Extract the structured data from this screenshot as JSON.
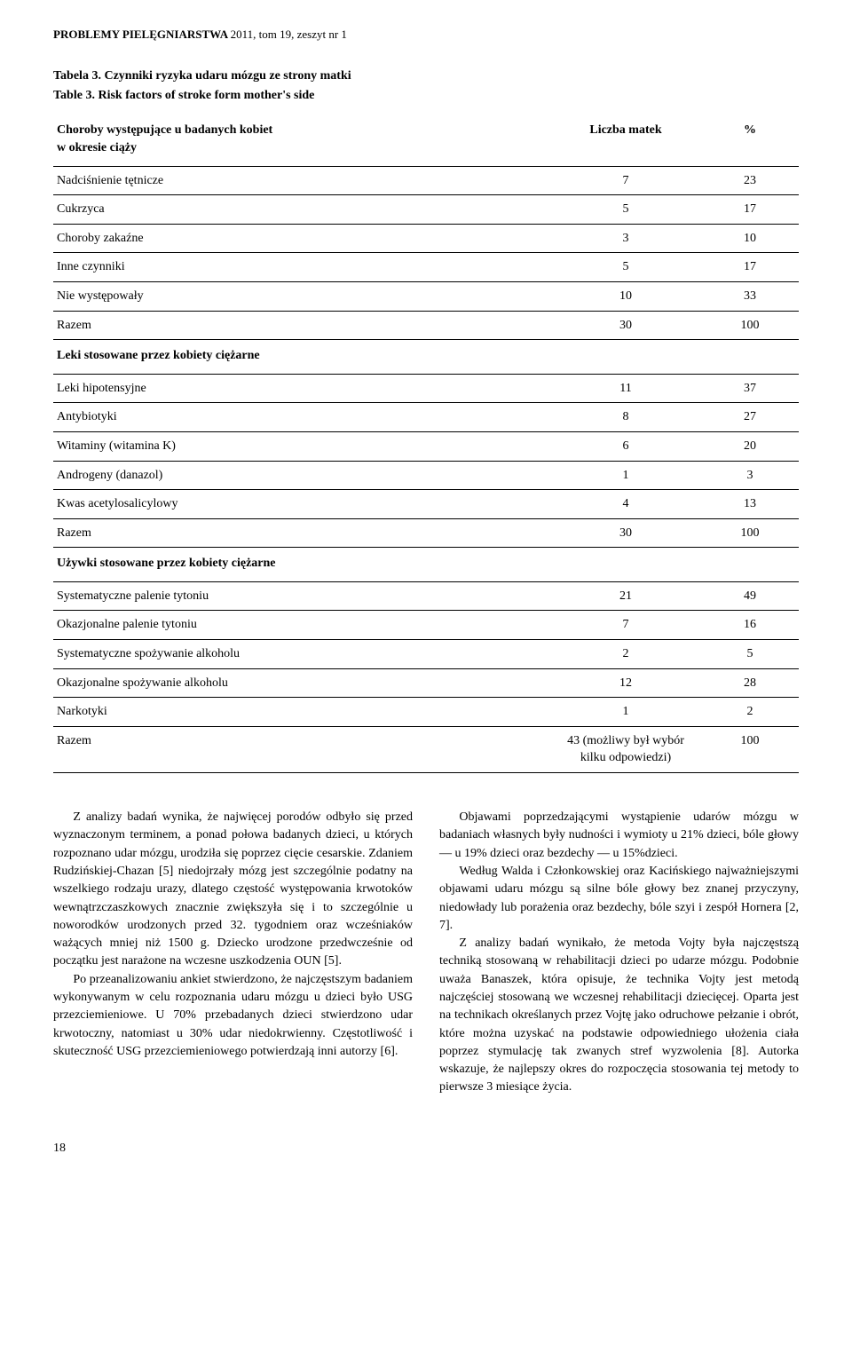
{
  "journal": {
    "title": "PROBLEMY PIELĘGNIARSTWA",
    "year_issue": "2011, tom 19, zeszyt nr 1"
  },
  "table": {
    "caption_pl_label": "Tabela 3.",
    "caption_pl_text": "Czynniki ryzyka udaru mózgu ze strony matki",
    "caption_en_label": "Table 3.",
    "caption_en_text": "Risk factors of stroke form mother's side",
    "header": {
      "col1_l1": "Choroby występujące u badanych kobiet",
      "col1_l2": "w okresie ciąży",
      "col2": "Liczba matek",
      "col3": "%"
    },
    "section1_rows": [
      {
        "label": "Nadciśnienie tętnicze",
        "val": "7",
        "pct": "23"
      },
      {
        "label": "Cukrzyca",
        "val": "5",
        "pct": "17"
      },
      {
        "label": "Choroby zakaźne",
        "val": "3",
        "pct": "10"
      },
      {
        "label": "Inne czynniki",
        "val": "5",
        "pct": "17"
      },
      {
        "label": "Nie występowały",
        "val": "10",
        "pct": "33"
      },
      {
        "label": "Razem",
        "val": "30",
        "pct": "100"
      }
    ],
    "section2_title": "Leki stosowane przez kobiety ciężarne",
    "section2_rows": [
      {
        "label": "Leki hipotensyjne",
        "val": "11",
        "pct": "37"
      },
      {
        "label": "Antybiotyki",
        "val": "8",
        "pct": "27"
      },
      {
        "label": "Witaminy (witamina K)",
        "val": "6",
        "pct": "20"
      },
      {
        "label": "Androgeny (danazol)",
        "val": "1",
        "pct": "3"
      },
      {
        "label": "Kwas acetylosalicylowy",
        "val": "4",
        "pct": "13"
      },
      {
        "label": "Razem",
        "val": "30",
        "pct": "100"
      }
    ],
    "section3_title": "Używki stosowane przez kobiety ciężarne",
    "section3_rows": [
      {
        "label": "Systematyczne palenie tytoniu",
        "val": "21",
        "pct": "49"
      },
      {
        "label": "Okazjonalne palenie tytoniu",
        "val": "7",
        "pct": "16"
      },
      {
        "label": "Systematyczne spożywanie alkoholu",
        "val": "2",
        "pct": "5"
      },
      {
        "label": "Okazjonalne spożywanie alkoholu",
        "val": "12",
        "pct": "28"
      },
      {
        "label": "Narkotyki",
        "val": "1",
        "pct": "2"
      }
    ],
    "section3_final": {
      "label": "Razem",
      "val_l1": "43 (możliwy był wybór",
      "val_l2": "kilku odpowiedzi)",
      "pct": "100"
    },
    "styling": {
      "border_color": "#000000",
      "font_size_pt": 14,
      "header_border_width": 1.5,
      "row_border_width": 1,
      "col_widths_pct": [
        60,
        25,
        15
      ],
      "background": "#ffffff",
      "text_color": "#000000"
    }
  },
  "body": {
    "left": {
      "p1": "Z analizy badań wynika, że najwięcej porodów odbyło się przed wyznaczonym terminem, a ponad połowa badanych dzieci, u których rozpoznano udar mózgu, urodziła się poprzez cięcie cesarskie. Zdaniem Rudzińskiej-Chazan [5] niedojrzały mózg jest szczególnie podatny na wszelkiego rodzaju urazy, dlatego częstość występowania krwotoków wewnątrzczaszkowych znacznie zwiększyła się i to szczególnie u noworodków urodzonych przed 32. tygodniem oraz wcześniaków ważących mniej niż 1500 g. Dziecko urodzone przedwcześnie od początku jest narażone na wczesne uszkodzenia OUN [5].",
      "p2": "Po przeanalizowaniu ankiet stwierdzono, że najczęstszym badaniem wykonywanym w celu rozpoznania udaru mózgu u dzieci było USG przezciemieniowe. U 70% przebadanych dzieci stwierdzono udar krwotoczny, natomiast u 30% udar niedokrwienny. Częstotliwość i skuteczność USG przezciemieniowego potwierdzają inni autorzy [6]."
    },
    "right": {
      "p1": "Objawami poprzedzającymi wystąpienie udarów mózgu w badaniach własnych były nudności i wymioty u 21% dzieci, bóle głowy — u 19% dzieci oraz bezdechy — u 15%dzieci.",
      "p2": "Według Walda i Członkowskiej oraz Kacińskiego najważniejszymi objawami udaru mózgu są silne bóle głowy bez znanej przyczyny, niedowłady lub porażenia oraz bezdechy, bóle szyi i zespół Hornera [2, 7].",
      "p3": "Z analizy badań wynikało, że metoda Vojty była najczęstszą techniką stosowaną w rehabilitacji dzieci po udarze mózgu. Podobnie uważa Banaszek, która opisuje, że technika Vojty jest metodą najczęściej stosowaną we wczesnej rehabilitacji dziecięcej. Oparta jest na technikach określanych przez Vojtę jako odruchowe pełzanie i obrót, które można uzyskać na podstawie odpowiedniego ułożenia ciała poprzez stymulację tak zwanych stref wyzwolenia [8]. Autorka wskazuje, że najlepszy okres do rozpoczęcia stosowania tej metody to pierwsze 3 miesiące życia."
    }
  },
  "page_number": "18"
}
